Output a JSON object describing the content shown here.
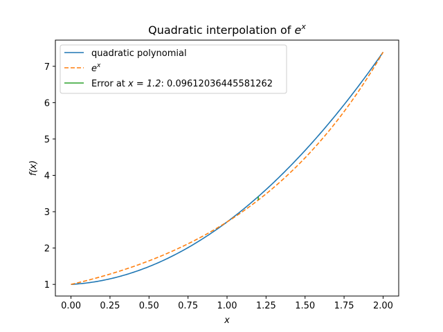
{
  "chart_data": {
    "type": "line",
    "title_prefix": "Quadratic interpolation of ",
    "title_math": "e",
    "title_sup": "x",
    "xlabel": "x",
    "ylabel_prefix": "f(",
    "ylabel_var": "x",
    "ylabel_suffix": ")",
    "xlim": [
      -0.1,
      2.1
    ],
    "ylim": [
      0.68,
      7.72
    ],
    "xticks": [
      0.0,
      0.25,
      0.5,
      0.75,
      1.0,
      1.25,
      1.5,
      1.75,
      2.0
    ],
    "xtick_labels": [
      "0.00",
      "0.25",
      "0.50",
      "0.75",
      "1.00",
      "1.25",
      "1.50",
      "1.75",
      "2.00"
    ],
    "yticks": [
      1,
      2,
      3,
      4,
      5,
      6,
      7
    ],
    "ytick_labels": [
      "1",
      "2",
      "3",
      "4",
      "5",
      "6",
      "7"
    ],
    "grid": false,
    "legend_position": "top-left",
    "series": [
      {
        "name": "quadratic polynomial",
        "color": "#1f77b4",
        "style": "solid",
        "formula": "quadratic through (0, e^0), (1, e^1), (2, e^2)",
        "x_range": [
          0,
          2
        ]
      },
      {
        "name_math": "e",
        "name_sup": "x",
        "color": "#ff7f0e",
        "style": "dashed",
        "formula": "exp(x)",
        "x_range": [
          0,
          2
        ]
      },
      {
        "name_prefix": "Error at ",
        "name_math": "x = 1.2",
        "name_suffix": ": 0.09612036445581262",
        "color": "#2ca02c",
        "style": "solid",
        "x": [
          1.2,
          1.2
        ],
        "y": [
          3.3201169227365472,
          3.41623728719236
        ]
      }
    ]
  }
}
